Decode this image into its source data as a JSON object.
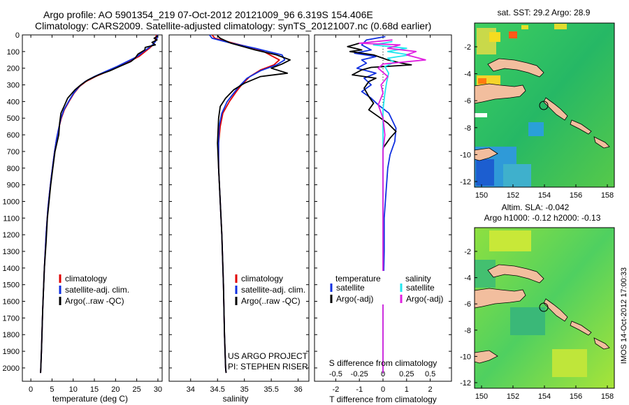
{
  "header": {
    "line1": "Argo profile: AO 5901354_219 07-Oct-2012 20121009_96 6.319S 154.406E",
    "line2": "Climatology: CARS2009. Satellite-adjusted climatology: synTS_20121007.nc (0.68d earlier)"
  },
  "colors": {
    "climatology": "#e00000",
    "satellite": "#1030e0",
    "argo": "#000000",
    "salinity_satellite": "#22e6ee",
    "salinity_argo": "#e020e0",
    "land": "#f2be9e"
  },
  "legend_profile": [
    "climatology",
    "satellite-adj. clim.",
    "Argo(..raw -QC)"
  ],
  "legend_diff": {
    "temperature_title": "temperature",
    "salinity_title": "salinity",
    "satellite": "satellite",
    "argo": "Argo(-adj)"
  },
  "credits": [
    "US ARGO PROJECT",
    "PI: STEPHEN RISER"
  ],
  "stamp": "IMOS 14-Oct-2012 17:00:33",
  "maps": {
    "top_title": "sat. SST: 29.2 Argo: 28.9",
    "bottom_title_1": "Altim. SLA: -0.042",
    "bottom_title_2": "Argo h1000: -0.12 h2000: -0.13",
    "x_ticks": [
      "150",
      "152",
      "154",
      "156",
      "158"
    ],
    "top_y_ticks": [
      "-2",
      "-4",
      "-6",
      "-8",
      "-10",
      "-12"
    ],
    "bottom_y_ticks": [
      "-2",
      "-4",
      "-6",
      "-8",
      "-10",
      "-12"
    ]
  },
  "chart_data": [
    {
      "type": "line",
      "panel": "temperature",
      "xlabel": "temperature (deg C)",
      "xlim": [
        -2,
        31
      ],
      "ylim": [
        2080,
        0
      ],
      "x_ticks": [
        0,
        5,
        10,
        15,
        20,
        25,
        30
      ],
      "y_ticks": [
        0,
        100,
        200,
        300,
        400,
        500,
        600,
        700,
        800,
        900,
        1000,
        1100,
        1200,
        1300,
        1400,
        1500,
        1600,
        1700,
        1800,
        1900,
        2000
      ],
      "series": [
        {
          "name": "climatology",
          "points": [
            [
              29.6,
              0
            ],
            [
              29.6,
              20
            ],
            [
              29.3,
              40
            ],
            [
              28.8,
              60
            ],
            [
              28.0,
              80
            ],
            [
              27.0,
              100
            ],
            [
              25.5,
              130
            ],
            [
              23.2,
              160
            ],
            [
              20.8,
              190
            ],
            [
              18.0,
              220
            ],
            [
              15.3,
              250
            ],
            [
              13.0,
              280
            ],
            [
              11.5,
              310
            ],
            [
              10.2,
              350
            ],
            [
              9.0,
              400
            ],
            [
              7.9,
              450
            ],
            [
              7.2,
              500
            ],
            [
              6.6,
              560
            ],
            [
              6.1,
              620
            ],
            [
              5.6,
              700
            ],
            [
              5.2,
              780
            ],
            [
              4.8,
              860
            ],
            [
              4.4,
              950
            ],
            [
              4.0,
              1050
            ],
            [
              3.6,
              1200
            ],
            [
              3.2,
              1400
            ],
            [
              2.8,
              1650
            ],
            [
              2.5,
              1900
            ],
            [
              2.3,
              2030
            ]
          ]
        },
        {
          "name": "satellite-adj. clim.",
          "points": [
            [
              29.9,
              0
            ],
            [
              29.8,
              20
            ],
            [
              29.4,
              40
            ],
            [
              28.7,
              60
            ],
            [
              27.7,
              80
            ],
            [
              26.6,
              100
            ],
            [
              25.1,
              130
            ],
            [
              22.7,
              160
            ],
            [
              20.3,
              190
            ],
            [
              17.6,
              220
            ],
            [
              15.0,
              250
            ],
            [
              12.8,
              280
            ],
            [
              11.4,
              310
            ],
            [
              10.1,
              350
            ],
            [
              8.9,
              400
            ],
            [
              7.8,
              450
            ],
            [
              7.1,
              500
            ],
            [
              6.6,
              560
            ],
            [
              6.1,
              620
            ],
            [
              5.6,
              700
            ],
            [
              5.2,
              780
            ],
            [
              4.8,
              860
            ],
            [
              4.4,
              950
            ],
            [
              4.0,
              1050
            ],
            [
              3.6,
              1200
            ],
            [
              3.2,
              1400
            ],
            [
              2.8,
              1650
            ],
            [
              2.5,
              1900
            ],
            [
              2.3,
              2030
            ]
          ]
        },
        {
          "name": "Argo(..raw -QC)",
          "points": [
            [
              30.0,
              5
            ],
            [
              29.1,
              20
            ],
            [
              29.8,
              30
            ],
            [
              28.6,
              45
            ],
            [
              29.4,
              60
            ],
            [
              27.0,
              75
            ],
            [
              26.9,
              90
            ],
            [
              25.3,
              115
            ],
            [
              24.6,
              140
            ],
            [
              23.6,
              160
            ],
            [
              20.9,
              190
            ],
            [
              18.7,
              215
            ],
            [
              16.0,
              240
            ],
            [
              13.5,
              270
            ],
            [
              11.8,
              300
            ],
            [
              10.4,
              330
            ],
            [
              8.7,
              380
            ],
            [
              8.0,
              420
            ],
            [
              7.1,
              470
            ],
            [
              6.8,
              530
            ],
            [
              6.6,
              600
            ],
            [
              5.7,
              700
            ],
            [
              5.2,
              800
            ],
            [
              4.7,
              900
            ],
            [
              4.3,
              1000
            ],
            [
              3.9,
              1100
            ],
            [
              3.6,
              1250
            ],
            [
              3.2,
              1400
            ],
            [
              2.8,
              1650
            ],
            [
              2.5,
              1900
            ],
            [
              2.3,
              2030
            ]
          ]
        }
      ]
    },
    {
      "type": "line",
      "panel": "salinity",
      "xlabel": "salinity",
      "xlim": [
        33.6,
        36.2
      ],
      "ylim": [
        2080,
        0
      ],
      "x_ticks": [
        34,
        34.5,
        35,
        35.5,
        36
      ],
      "series": [
        {
          "name": "climatology",
          "points": [
            [
              34.4,
              0
            ],
            [
              34.45,
              20
            ],
            [
              34.8,
              50
            ],
            [
              35.3,
              90
            ],
            [
              35.65,
              150
            ],
            [
              35.55,
              180
            ],
            [
              35.3,
              210
            ],
            [
              35.1,
              250
            ],
            [
              34.95,
              300
            ],
            [
              34.85,
              340
            ],
            [
              34.72,
              400
            ],
            [
              34.6,
              470
            ],
            [
              34.55,
              550
            ],
            [
              34.52,
              650
            ],
            [
              34.52,
              800
            ],
            [
              34.55,
              1000
            ],
            [
              34.58,
              1200
            ],
            [
              34.61,
              1500
            ],
            [
              34.63,
              1800
            ],
            [
              34.65,
              2000
            ],
            [
              34.66,
              2030
            ]
          ]
        },
        {
          "name": "satellite-adj. clim.",
          "points": [
            [
              34.35,
              0
            ],
            [
              34.4,
              20
            ],
            [
              34.7,
              45
            ],
            [
              35.2,
              80
            ],
            [
              35.7,
              120
            ],
            [
              35.75,
              150
            ],
            [
              35.6,
              180
            ],
            [
              35.3,
              215
            ],
            [
              35.05,
              260
            ],
            [
              34.9,
              310
            ],
            [
              34.8,
              350
            ],
            [
              34.68,
              400
            ],
            [
              34.58,
              470
            ],
            [
              34.53,
              550
            ],
            [
              34.52,
              650
            ],
            [
              34.52,
              800
            ],
            [
              34.55,
              1000
            ],
            [
              34.58,
              1200
            ],
            [
              34.61,
              1500
            ],
            [
              34.63,
              1800
            ],
            [
              34.65,
              2000
            ],
            [
              34.66,
              2030
            ]
          ]
        },
        {
          "name": "Argo(..raw -QC)",
          "points": [
            [
              34.5,
              5
            ],
            [
              34.55,
              20
            ],
            [
              34.75,
              50
            ],
            [
              35.2,
              90
            ],
            [
              35.6,
              120
            ],
            [
              35.85,
              150
            ],
            [
              35.7,
              175
            ],
            [
              35.5,
              200
            ],
            [
              35.8,
              230
            ],
            [
              35.3,
              250
            ],
            [
              35.0,
              290
            ],
            [
              34.8,
              330
            ],
            [
              34.65,
              380
            ],
            [
              34.55,
              430
            ],
            [
              34.52,
              500
            ],
            [
              34.5,
              650
            ],
            [
              34.52,
              800
            ],
            [
              34.55,
              1000
            ],
            [
              34.58,
              1200
            ],
            [
              34.61,
              1500
            ],
            [
              34.63,
              1800
            ],
            [
              34.65,
              2000
            ],
            [
              34.66,
              2030
            ]
          ]
        }
      ]
    },
    {
      "type": "line",
      "panel": "difference",
      "xlabel": "T difference from climatology",
      "xlabel_top": "S difference from climatology",
      "xlim": [
        -2.9,
        2.9
      ],
      "ylim": [
        2080,
        0
      ],
      "x_ticks_T": [
        -2,
        -1,
        0,
        1,
        2
      ],
      "x_ticks_S_labels": [
        "-0.5",
        "-0.25",
        "0",
        "0.25",
        "0.5"
      ],
      "x_ticks_S_values": [
        -0.5,
        -0.25,
        0,
        0.25,
        0.5
      ],
      "series": [
        {
          "name": "temperature satellite",
          "points": [
            [
              0.1,
              10
            ],
            [
              -0.7,
              30
            ],
            [
              -0.9,
              60
            ],
            [
              -0.5,
              90
            ],
            [
              -1.2,
              110
            ],
            [
              -0.3,
              130
            ],
            [
              -0.9,
              150
            ],
            [
              -0.7,
              170
            ],
            [
              -1.1,
              200
            ],
            [
              -0.3,
              230
            ],
            [
              -0.8,
              260
            ],
            [
              -0.5,
              300
            ],
            [
              -0.9,
              340
            ],
            [
              -0.5,
              380
            ],
            [
              -0.2,
              420
            ],
            [
              0.25,
              470
            ],
            [
              0.55,
              560
            ],
            [
              0.5,
              640
            ],
            [
              0.3,
              720
            ],
            [
              0.2,
              800
            ],
            [
              0.15,
              900
            ],
            [
              0.1,
              1000
            ],
            [
              0.05,
              1100
            ],
            [
              0.05,
              1300
            ],
            [
              0,
              1600
            ],
            [
              0,
              2030
            ]
          ]
        },
        {
          "name": "temperature Argo(-adj)",
          "points": [
            [
              -1.0,
              50
            ],
            [
              -1.5,
              70
            ],
            [
              -0.9,
              90
            ],
            [
              -1.4,
              100
            ],
            [
              -0.4,
              120
            ],
            [
              0.2,
              150
            ],
            [
              0.8,
              170
            ],
            [
              1.2,
              180
            ],
            [
              -0.5,
              195
            ],
            [
              -0.9,
              210
            ],
            [
              -1.3,
              240
            ],
            [
              -0.3,
              260
            ],
            [
              -0.6,
              280
            ],
            [
              -0.8,
              320
            ],
            [
              -0.6,
              370
            ],
            [
              -0.4,
              410
            ],
            [
              -0.6,
              450
            ],
            [
              -0.2,
              490
            ],
            [
              0.2,
              530
            ],
            [
              0.55,
              580
            ],
            [
              0.3,
              620
            ],
            [
              0,
              680
            ],
            [
              0,
              900
            ],
            [
              0,
              1000
            ],
            [
              0,
              1100
            ],
            [
              0,
              1300
            ],
            [
              0,
              2030
            ]
          ]
        },
        {
          "name": "salinity satellite",
          "points": [
            [
              0.1,
              40
            ],
            [
              -0.1,
              60
            ],
            [
              0.25,
              80
            ],
            [
              0.05,
              100
            ],
            [
              0.28,
              120
            ],
            [
              0.05,
              140
            ],
            [
              0.12,
              165
            ],
            [
              0.02,
              190
            ],
            [
              0.06,
              230
            ],
            [
              0.04,
              280
            ],
            [
              0.02,
              350
            ],
            [
              0,
              450
            ],
            [
              0,
              700
            ],
            [
              0,
              2030
            ]
          ]
        },
        {
          "name": "salinity Argo(-adj)",
          "points": [
            [
              0.1,
              30
            ],
            [
              -0.25,
              50
            ],
            [
              0.18,
              60
            ],
            [
              0.05,
              80
            ],
            [
              0.35,
              100
            ],
            [
              0.25,
              120
            ],
            [
              0.45,
              150
            ],
            [
              0.0,
              175
            ],
            [
              -0.05,
              200
            ],
            [
              0.05,
              250
            ],
            [
              -0.02,
              300
            ],
            [
              0,
              350
            ],
            [
              -0.05,
              420
            ],
            [
              0,
              500
            ],
            [
              0.02,
              600
            ],
            [
              0,
              700
            ],
            [
              0,
              2030
            ]
          ]
        }
      ]
    }
  ]
}
